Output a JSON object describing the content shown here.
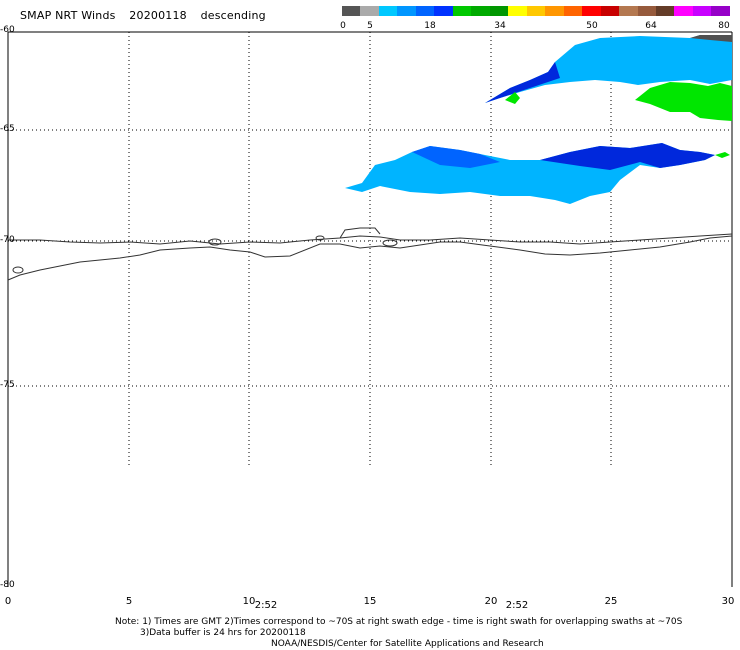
{
  "header": {
    "product": "SMAP NRT Winds",
    "date": "20200118",
    "pass": "descending"
  },
  "colorbar": {
    "colors": [
      "#555555",
      "#aaaaaa",
      "#00c8ff",
      "#0096ff",
      "#0064ff",
      "#0032ff",
      "#00c800",
      "#00aa00",
      "#009600",
      "#ffff00",
      "#ffc800",
      "#ff9600",
      "#ff6400",
      "#ff0000",
      "#c80000",
      "#b47850",
      "#965a3c",
      "#643c28",
      "#ff00ff",
      "#c800ff",
      "#9600c8"
    ],
    "tick_labels": [
      "0",
      "5",
      "18",
      "34",
      "50",
      "64",
      "80"
    ]
  },
  "map": {
    "lat_labels": [
      "-60",
      "-65",
      "-70",
      "-75",
      "-80"
    ],
    "lon_labels": [
      "0",
      "5",
      "10",
      "15",
      "20",
      "25",
      "30"
    ],
    "time_labels": [
      "2:52",
      "2:52"
    ],
    "colors": {
      "coast": "#333333",
      "grid": "#000000",
      "wind_light_blue": "#00b4ff",
      "wind_mid_blue": "#0064ff",
      "wind_dark_blue": "#0028dc",
      "wind_green": "#00e600",
      "land_dark": "#505050"
    }
  },
  "footer": {
    "note_line1": "Note: 1) Times are GMT 2)Times correspond to ~70S at right swath edge - time is right swath for overlapping swaths at ~70S",
    "note_line2": "3)Data buffer is 24 hrs for 20200118",
    "credit": "NOAA/NESDIS/Center for Satellite Applications and Research"
  }
}
